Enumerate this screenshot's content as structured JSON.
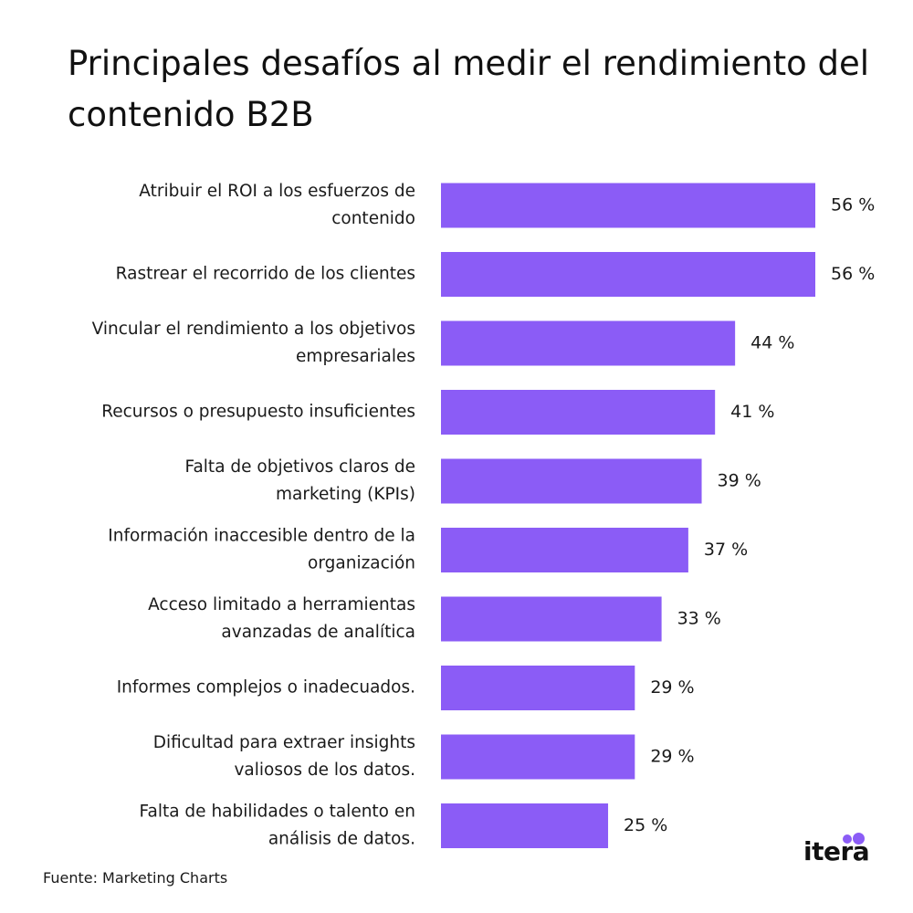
{
  "title": "Principales desafíos al medir el rendimiento del contenido B2B",
  "source": "Fuente: Marketing Charts",
  "brand": {
    "name": "itera",
    "accent": "#8b5cf6"
  },
  "colors": {
    "bar": "#8b5cf6",
    "text": "#1a1a1a"
  },
  "chart_data": {
    "type": "bar",
    "orientation": "horizontal",
    "title": "Principales desafíos al medir el rendimiento del contenido B2B",
    "categories": [
      [
        "Atribuir el ROI a los esfuerzos de",
        "contenido"
      ],
      [
        "Rastrear el recorrido de los clientes"
      ],
      [
        "Vincular el rendimiento a los objetivos",
        "empresariales"
      ],
      [
        "Recursos o presupuesto insuficientes"
      ],
      [
        "Falta de objetivos claros de",
        "marketing (KPIs)"
      ],
      [
        "Información inaccesible dentro de la",
        "organización"
      ],
      [
        "Acceso limitado a herramientas",
        "avanzadas de analítica"
      ],
      [
        "Informes complejos o inadecuados."
      ],
      [
        "Dificultad para extraer insights",
        "valiosos de los datos."
      ],
      [
        "Falta de habilidades o talento en",
        "análisis de datos."
      ]
    ],
    "values": [
      56,
      56,
      44,
      41,
      39,
      37,
      33,
      29,
      29,
      25
    ],
    "value_labels": [
      "56 %",
      "56 %",
      "44 %",
      "41 %",
      "39 %",
      "37 %",
      "33 %",
      "29 %",
      "29 %",
      "25 %"
    ],
    "unit": "%",
    "xlim": [
      0,
      56
    ],
    "grid": false,
    "legend": "none"
  }
}
